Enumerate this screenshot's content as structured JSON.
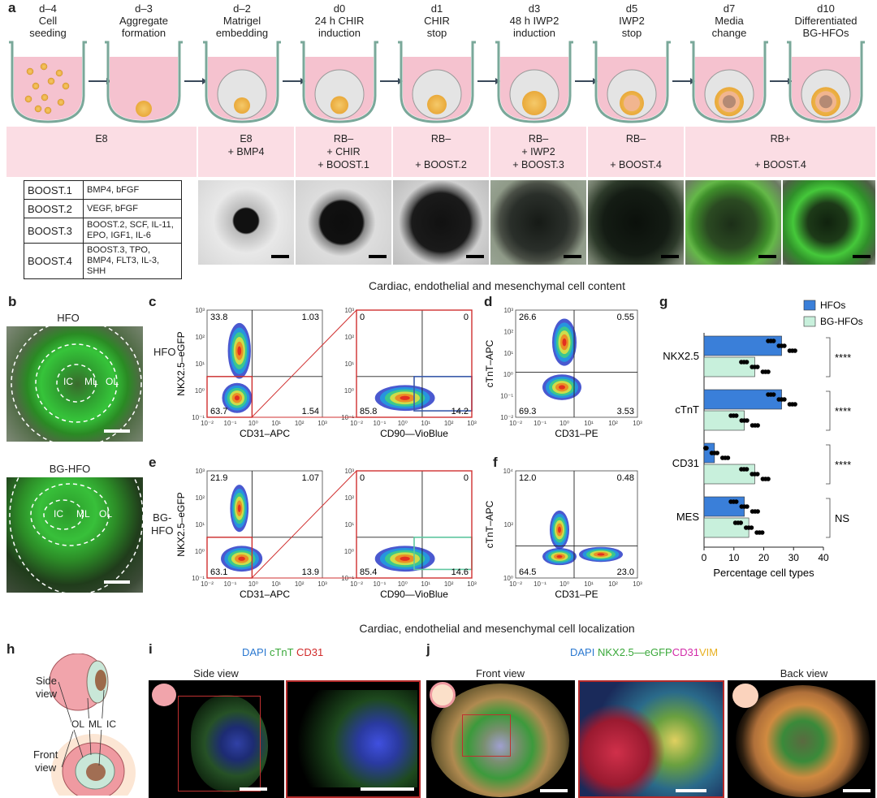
{
  "panels": {
    "a": "a",
    "b": "b",
    "c": "c",
    "d": "d",
    "e": "e",
    "f": "f",
    "g": "g",
    "h": "h",
    "i": "i",
    "j": "j"
  },
  "stages": [
    {
      "day": "d–4",
      "desc": "Cell\nseeding"
    },
    {
      "day": "d–3",
      "desc": "Aggregate\nformation"
    },
    {
      "day": "d–2",
      "desc": "Matrigel\nembedding"
    },
    {
      "day": "d0",
      "desc": "24 h CHIR\ninduction"
    },
    {
      "day": "d1",
      "desc": "CHIR\nstop"
    },
    {
      "day": "d3",
      "desc": "48 h IWP2\ninduction"
    },
    {
      "day": "d5",
      "desc": "IWP2\nstop"
    },
    {
      "day": "d7",
      "desc": "Media\nchange"
    },
    {
      "day": "d10",
      "desc": "Differentiated\nBG-HFOs"
    }
  ],
  "media": [
    {
      "text": "E8"
    },
    {
      "text": "E8\n+ BMP4"
    },
    {
      "text": "RB–\n+ CHIR\n+ BOOST.1"
    },
    {
      "text": "RB–\n\n+ BOOST.2"
    },
    {
      "text": "RB–\n+ IWP2\n+ BOOST.3"
    },
    {
      "text": "RB–\n\n+ BOOST.4"
    },
    {
      "text": "RB+\n\n+ BOOST.4"
    }
  ],
  "boost_table": [
    {
      "name": "BOOST.1",
      "content": "BMP4, bFGF"
    },
    {
      "name": "BOOST.2",
      "content": "VEGF, bFGF"
    },
    {
      "name": "BOOST.3",
      "content": "BOOST.2, SCF, IL-11, EPO, IGF1, IL-6"
    },
    {
      "name": "BOOST.4",
      "content": "BOOST.3, TPO, BMP4, FLT3, IL-3, SHH"
    }
  ],
  "section_titles": {
    "content": "Cardiac, endothelial and mesenchymal cell content",
    "localization": "Cardiac, endothelial and mesenchymal cell localization"
  },
  "panel_b": {
    "hfo_title": "HFO",
    "bghfo_title": "BG-HFO",
    "regions": [
      "IC",
      "ML",
      "OL"
    ]
  },
  "flow": {
    "c_row_label": "HFO",
    "e_row_label": "BG-\nHFO",
    "y_label_nkx": "NKX2.5–eGFP",
    "x_label_cd31apc": "CD31–APC",
    "x_label_cd90": "CD90—VioBlue",
    "y_label_ctnt": "cTnT–APC",
    "x_label_cd31pe": "CD31–PE",
    "c_quadrants": [
      "33.8",
      "1.03",
      "63.7",
      "1.54"
    ],
    "c_gate": [
      "0",
      "0",
      "85.8",
      "14.2"
    ],
    "e_quadrants": [
      "21.9",
      "1.07",
      "63.1",
      "13.9"
    ],
    "e_gate": [
      "0",
      "0",
      "85.4",
      "14.6"
    ],
    "d_quadrants": [
      "26.6",
      "0.55",
      "69.3",
      "3.53"
    ],
    "f_quadrants": [
      "12.0",
      "0.48",
      "64.5",
      "23.0"
    ],
    "y_ticks": [
      "10³",
      "10²",
      "10¹",
      "10⁰",
      "10⁻¹"
    ],
    "x_ticks": [
      "10⁻²",
      "10⁻¹",
      "10⁰",
      "10¹",
      "10²",
      "10³"
    ],
    "d_y_ticks": [
      "10³",
      "10²",
      "10¹",
      "10⁰",
      "10⁻¹",
      "10⁻²"
    ],
    "f_y_ticks": [
      "10⁴",
      "10²",
      "10⁰"
    ]
  },
  "chart_data": {
    "type": "bar",
    "orientation": "horizontal",
    "categories": [
      "NKX2.5",
      "cTnT",
      "CD31",
      "MES"
    ],
    "series": [
      {
        "name": "HFOs",
        "color": "#3a7fd9",
        "values": [
          26,
          26,
          3.5,
          13.5
        ]
      },
      {
        "name": "BG-HFOs",
        "color": "#c8f0dc",
        "values": [
          17,
          13.5,
          17,
          15
        ]
      }
    ],
    "significance": [
      "****",
      "****",
      "****",
      "NS"
    ],
    "xlabel": "Percentage cell types",
    "xticks": [
      0,
      10,
      20,
      30,
      40
    ],
    "xlim": [
      0,
      40
    ],
    "legend": "top-right"
  },
  "panel_h": {
    "side": "Side\nview",
    "front": "Front\nview",
    "layers": [
      "OL",
      "ML",
      "IC"
    ]
  },
  "panel_i": {
    "stain_dapi": "DAPI",
    "stain_ctnt": "cTnT",
    "stain_cd31": "CD31",
    "view": "Side view"
  },
  "panel_j": {
    "stain_dapi": "DAPI",
    "stain_nkx": "NKX2.5—eGFP",
    "stain_cd31": "CD31",
    "stain_vim": "VIM",
    "front": "Front view",
    "back": "Back view"
  }
}
